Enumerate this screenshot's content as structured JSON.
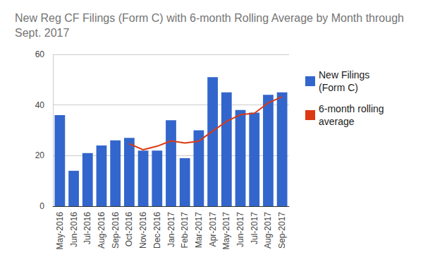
{
  "chart_data": {
    "type": "bar",
    "title": "New Reg CF Filings (Form C) with 6-month Rolling Average by Month through Sept. 2017",
    "categories": [
      "May-2016",
      "Jun-2016",
      "Jul-2016",
      "Aug-2016",
      "Sep-2016",
      "Oct-2016",
      "Nov-2016",
      "Dec-2016",
      "Jan-2017",
      "Feb-2017",
      "Mar-2017",
      "Apr-2017",
      "May-2017",
      "Jun-2017",
      "Jul-2017",
      "Aug-2017",
      "Sep-2017"
    ],
    "series": [
      {
        "name": "New Filings (Form C)",
        "type": "bar",
        "color": "#3366cc",
        "values": [
          36,
          14,
          21,
          24,
          26,
          27,
          22,
          22,
          34,
          19,
          30,
          51,
          45,
          38,
          37,
          44,
          45
        ]
      },
      {
        "name": "6-month rolling average",
        "type": "line",
        "color": "#dc3912",
        "values": [
          null,
          null,
          null,
          null,
          null,
          24.7,
          22.3,
          23.7,
          25.8,
          25.0,
          25.7,
          29.7,
          33.5,
          36.2,
          36.7,
          40.8,
          43.3
        ]
      }
    ],
    "ylim": [
      0,
      60
    ],
    "yticks": [
      0,
      20,
      40,
      60
    ],
    "grid": true,
    "legend": "right"
  }
}
